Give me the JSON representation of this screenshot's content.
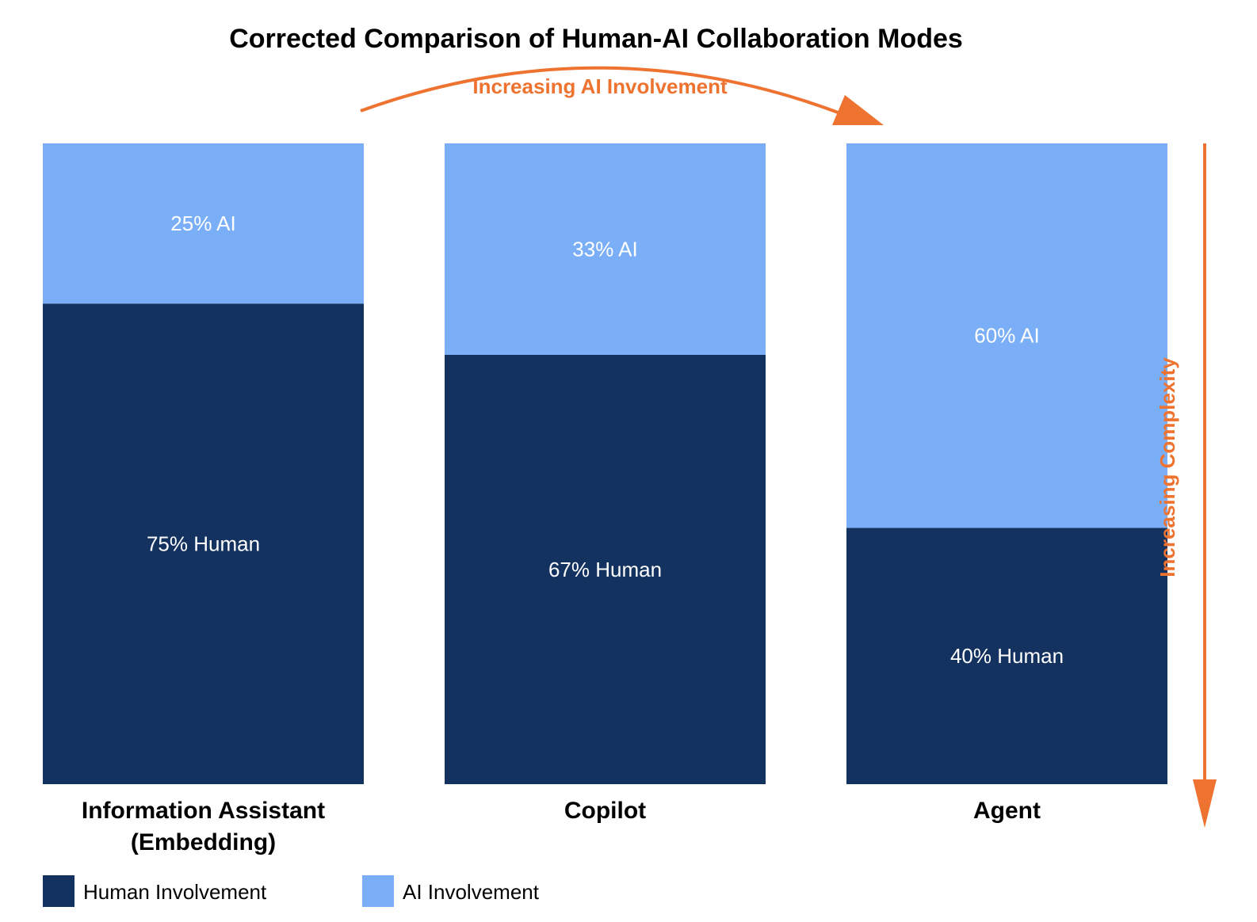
{
  "chart_data": {
    "type": "bar",
    "stacked": true,
    "title": "Corrected Comparison of Human-AI Collaboration Modes",
    "categories": [
      [
        "Information Assistant",
        "(Embedding)"
      ],
      [
        "Copilot"
      ],
      [
        "Agent"
      ]
    ],
    "series": [
      {
        "name": "Human Involvement",
        "color": "#14325f",
        "values": [
          75,
          67,
          40
        ],
        "labels": [
          "75% Human",
          "67% Human",
          "40% Human"
        ]
      },
      {
        "name": "AI Involvement",
        "color": "#7aaff7",
        "values": [
          25,
          33,
          60
        ],
        "labels": [
          "25% AI",
          "33% AI",
          "60% AI"
        ]
      }
    ],
    "ylim": [
      0,
      100
    ],
    "grid": false,
    "legend": "bottom-left",
    "annotations": {
      "top_arrow": "Increasing AI Involvement",
      "side_arrow": "Increasing Complexity",
      "color": "#ee7330"
    }
  }
}
